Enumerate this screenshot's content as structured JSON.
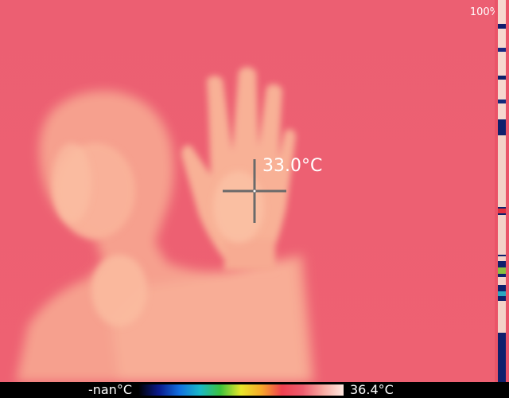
{
  "viewer": {
    "zoom_label": "100%",
    "spot_temperature": "33.0°C"
  },
  "scale": {
    "min_label": "-nan°C",
    "max_label": "36.4°C"
  },
  "palette": {
    "background": "#ec5c6c",
    "warm": "#f5a08e",
    "hot": "#fbc7a6",
    "stops": [
      "#000000",
      "#0a1a8c",
      "#1270e0",
      "#19b8c8",
      "#3cc23c",
      "#e8e62a",
      "#f7a82a",
      "#f04050",
      "#ee5c6e",
      "#f8a8a0",
      "#ffe8e0"
    ]
  }
}
